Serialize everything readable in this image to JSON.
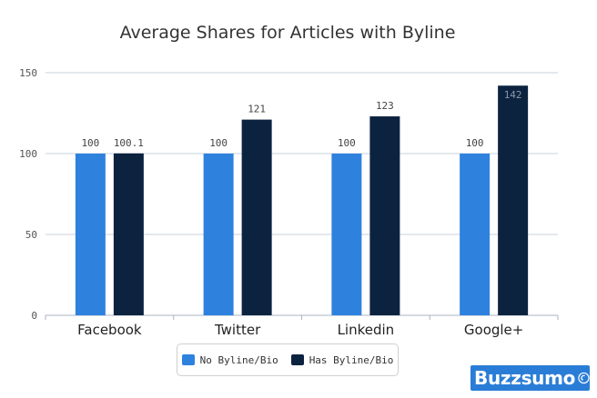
{
  "chart_data": {
    "type": "bar",
    "title": "Average Shares for Articles with Byline",
    "xlabel": "",
    "ylabel": "",
    "categories": [
      "Facebook",
      "Twitter",
      "Linkedin",
      "Google+"
    ],
    "series": [
      {
        "name": "No Byline/Bio",
        "values": [
          100,
          100,
          100,
          100
        ],
        "labels": [
          "100",
          "100",
          "100",
          "100"
        ],
        "color": "#2e82de"
      },
      {
        "name": "Has Byline/Bio",
        "values": [
          100.1,
          121,
          123,
          142
        ],
        "labels": [
          "100.1",
          "121",
          "123",
          "142"
        ],
        "color": "#0c2340"
      }
    ],
    "ylim": [
      0,
      150
    ],
    "yticks": [
      0,
      50,
      100,
      150
    ],
    "grid": true,
    "legend_position": "bottom"
  },
  "legend": {
    "items": [
      {
        "label": "No Byline/Bio",
        "color": "#2e82de"
      },
      {
        "label": "Has Byline/Bio",
        "color": "#0c2340"
      }
    ]
  },
  "brand": {
    "name": "Buzzsumo",
    "color": "#2a7dd6",
    "icon": "broadcast-icon"
  }
}
